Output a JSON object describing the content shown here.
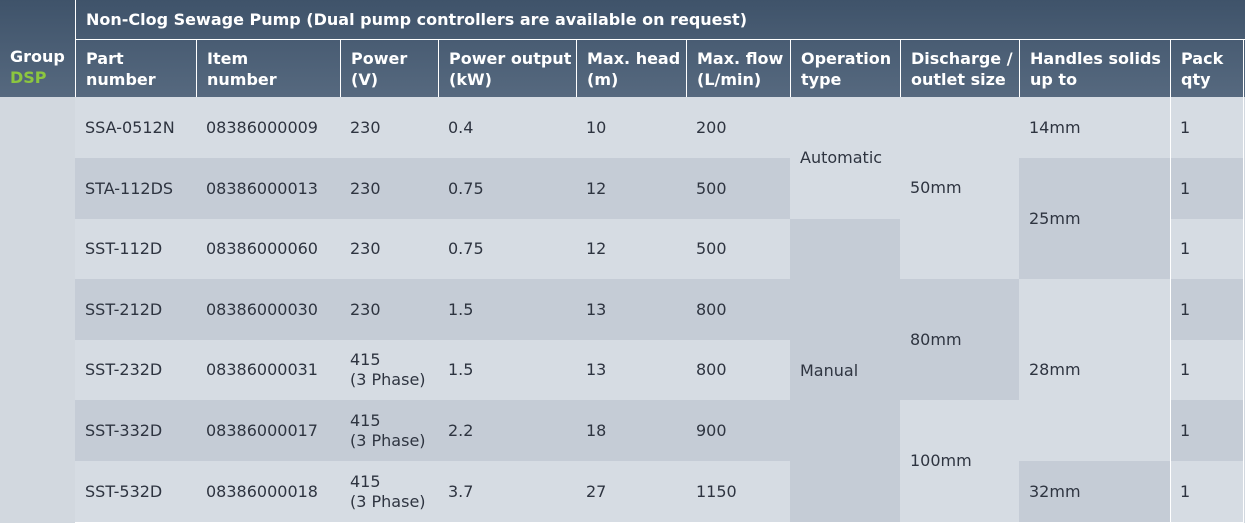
{
  "table_title": "Non-Clog Sewage Pump (Dual pump controllers are available on request)",
  "group": {
    "label": "Group",
    "code": "DSP"
  },
  "headers": {
    "part_number": [
      "Part",
      "number"
    ],
    "item_number": [
      "Item",
      "number"
    ],
    "power": [
      "Power",
      "(V)"
    ],
    "power_output": [
      "Power output",
      "(kW)"
    ],
    "max_head": [
      "Max. head",
      "(m)"
    ],
    "max_flow": [
      "Max. flow",
      "(L/min)"
    ],
    "operation_type": [
      "Operation",
      "type"
    ],
    "discharge": [
      "Discharge /",
      "outlet size"
    ],
    "handles_solids": [
      "Handles solids",
      "up to"
    ],
    "pack_qty": [
      "Pack",
      "qty"
    ]
  },
  "rows": [
    {
      "part": "SSA-0512N",
      "item": "08386000009",
      "power": [
        "230"
      ],
      "output": "0.4",
      "head": "10",
      "flow": "200",
      "qty": "1"
    },
    {
      "part": "STA-112DS",
      "item": "08386000013",
      "power": [
        "230"
      ],
      "output": "0.75",
      "head": "12",
      "flow": "500",
      "qty": "1"
    },
    {
      "part": "SST-112D",
      "item": "08386000060",
      "power": [
        "230"
      ],
      "output": "0.75",
      "head": "12",
      "flow": "500",
      "qty": "1"
    },
    {
      "part": "SST-212D",
      "item": "08386000030",
      "power": [
        "230"
      ],
      "output": "1.5",
      "head": "13",
      "flow": "800",
      "qty": "1"
    },
    {
      "part": "SST-232D",
      "item": "08386000031",
      "power": [
        "415",
        "(3 Phase)"
      ],
      "output": "1.5",
      "head": "13",
      "flow": "800",
      "qty": "1"
    },
    {
      "part": "SST-332D",
      "item": "08386000017",
      "power": [
        "415",
        "(3 Phase)"
      ],
      "output": "2.2",
      "head": "18",
      "flow": "900",
      "qty": "1"
    },
    {
      "part": "SST-532D",
      "item": "08386000018",
      "power": [
        "415",
        "(3 Phase)"
      ],
      "output": "3.7",
      "head": "27",
      "flow": "1150",
      "qty": "1"
    }
  ],
  "operation_type": [
    "Automatic",
    "Manual"
  ],
  "discharge": [
    "50mm",
    "80mm",
    "100mm"
  ],
  "handles_solids": [
    "14mm",
    "25mm",
    "28mm",
    "32mm"
  ],
  "colors": {
    "header": "#46596f",
    "row_light": "#d6dce3",
    "row_dark": "#c5ccd6",
    "group_code": "#8cc63f"
  }
}
